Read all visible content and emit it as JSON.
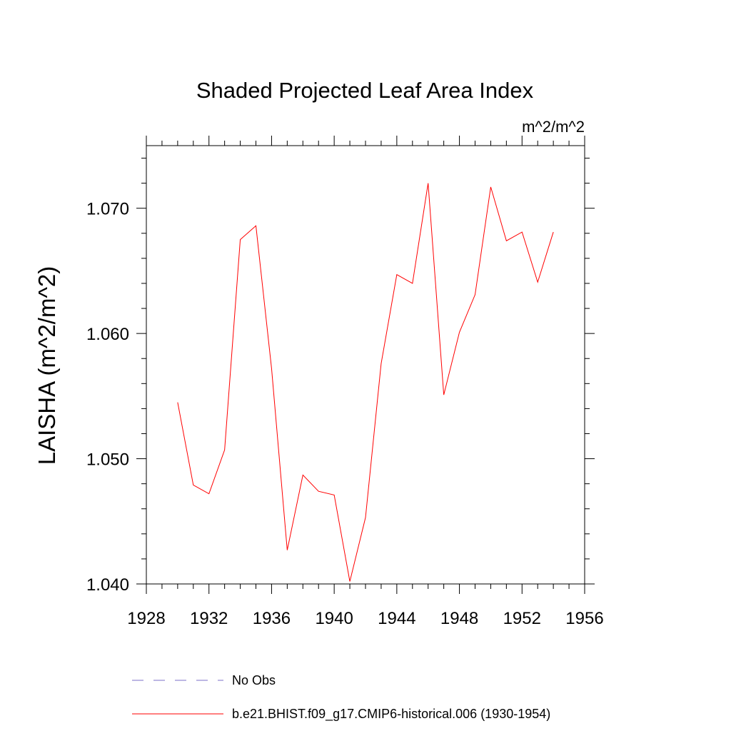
{
  "chart_data": {
    "type": "line",
    "title": "Shaded Projected Leaf Area Index",
    "units": "m^2/m^2",
    "ylabel": "LAISHA  (m^2/m^2)",
    "xlabel": "",
    "xlim": [
      1928,
      1956
    ],
    "ylim": [
      1.04,
      1.075
    ],
    "x_ticks": [
      1928,
      1932,
      1936,
      1940,
      1944,
      1948,
      1952,
      1956
    ],
    "x_tick_labels": [
      "1928",
      "1932",
      "1936",
      "1940",
      "1944",
      "1948",
      "1952",
      "1956"
    ],
    "y_ticks": [
      1.04,
      1.05,
      1.06,
      1.07
    ],
    "y_tick_labels": [
      "1.040",
      "1.050",
      "1.060",
      "1.070"
    ],
    "x_minor_step": 1,
    "y_minor_step": 0.002,
    "grid": false,
    "legend_position": "bottom",
    "series": [
      {
        "name": "b.e21.BHIST.f09_g17.CMIP6-historical.006 (1930-1954)",
        "color": "#ff0000",
        "style": "solid",
        "x": [
          1930,
          1931,
          1932,
          1933,
          1934,
          1935,
          1936,
          1937,
          1938,
          1939,
          1940,
          1941,
          1942,
          1943,
          1944,
          1945,
          1946,
          1947,
          1948,
          1949,
          1950,
          1951,
          1952,
          1953,
          1954
        ],
        "values": [
          1.0545,
          1.0479,
          1.0472,
          1.0507,
          1.0675,
          1.0686,
          1.0572,
          1.0427,
          1.0487,
          1.0474,
          1.0471,
          1.0402,
          1.0453,
          1.0576,
          1.0647,
          1.064,
          1.072,
          1.0551,
          1.0601,
          1.0631,
          1.0717,
          1.0674,
          1.0681,
          1.0641,
          1.0681
        ]
      }
    ],
    "legend": [
      {
        "label": "No Obs",
        "color": "#7b6fc8",
        "style": "dashed"
      },
      {
        "label": "b.e21.BHIST.f09_g17.CMIP6-historical.006 (1930-1954)",
        "color": "#ff0000",
        "style": "solid"
      }
    ]
  }
}
